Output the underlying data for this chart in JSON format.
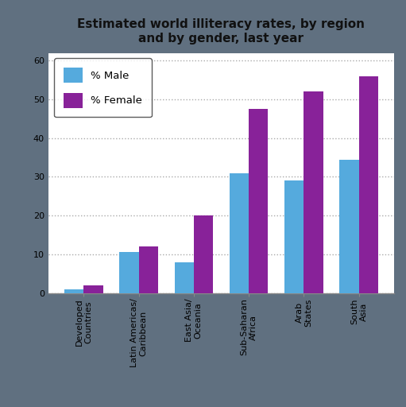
{
  "title": "Estimated world illiteracy rates, by region\nand by gender, last year",
  "categories": [
    "Developed\nCountries",
    "Latin Americas/\nCaribbean",
    "East Asia/\nOceania",
    "Sub-Saharan\nAfrica",
    "Arab\nStates",
    "South\nAsia"
  ],
  "male_values": [
    1,
    10.5,
    8,
    31,
    29,
    34.5
  ],
  "female_values": [
    2,
    12,
    20,
    47.5,
    52,
    56
  ],
  "male_color": "#55AADD",
  "female_color": "#882299",
  "bar_width": 0.35,
  "ylim": [
    0,
    62
  ],
  "yticks": [
    0,
    10,
    20,
    30,
    40,
    50,
    60
  ],
  "legend_male": "% Male",
  "legend_female": "% Female",
  "outer_bg_color": "#607080",
  "plot_bg_color": "#FFFFFF",
  "grid_color": "#AAAAAA",
  "title_fontsize": 11,
  "tick_fontsize": 8,
  "legend_fontsize": 9.5
}
